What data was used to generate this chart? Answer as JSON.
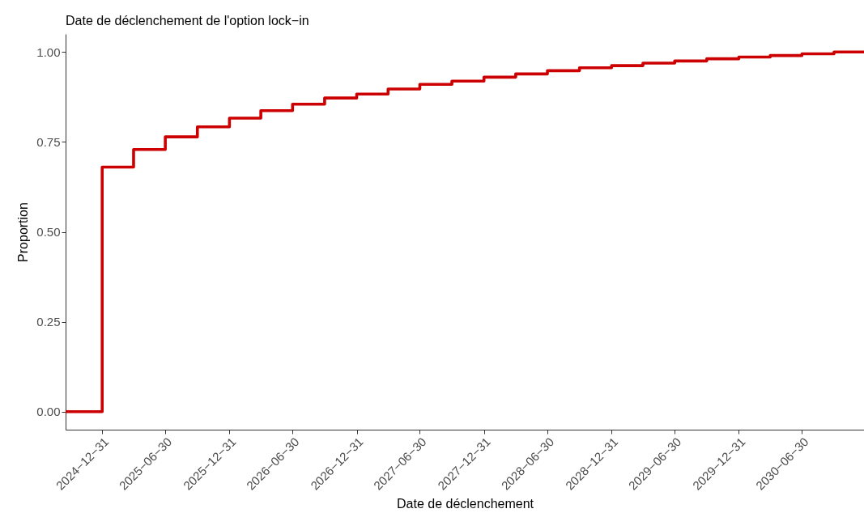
{
  "chart_data": {
    "type": "step",
    "title": "Date de déclenchement de l'option lock−in",
    "xlabel": "Date de déclenchement",
    "ylabel": "Proportion",
    "x": [
      "2024-09-17",
      "2024-12-31",
      "2025-03-31",
      "2025-06-30",
      "2025-09-30",
      "2025-12-31",
      "2026-03-31",
      "2026-06-30",
      "2026-09-30",
      "2026-12-31",
      "2027-03-31",
      "2027-06-30",
      "2027-09-30",
      "2027-12-31",
      "2028-03-31",
      "2028-06-30",
      "2028-09-30",
      "2028-12-31",
      "2029-03-31",
      "2029-06-30",
      "2029-09-30",
      "2029-12-31",
      "2030-03-31",
      "2030-06-30",
      "2030-09-30",
      "2030-12-25"
    ],
    "series": [
      {
        "color": "#cc0000",
        "values": [
          0,
          0.68,
          0.729,
          0.764,
          0.792,
          0.816,
          0.837,
          0.855,
          0.872,
          0.883,
          0.897,
          0.91,
          0.919,
          0.93,
          0.939,
          0.948,
          0.956,
          0.962,
          0.969,
          0.975,
          0.981,
          0.986,
          0.99,
          0.995,
          1.0,
          1.0
        ]
      }
    ],
    "xlim": [
      "2024-09-17",
      "2030-12-25"
    ],
    "xticks": [
      {
        "value": "2024-12-31",
        "label": "2024−12−31"
      },
      {
        "value": "2025-06-30",
        "label": "2025−06−30"
      },
      {
        "value": "2025-12-31",
        "label": "2025−12−31"
      },
      {
        "value": "2026-06-30",
        "label": "2026−06−30"
      },
      {
        "value": "2026-12-31",
        "label": "2026−12−31"
      },
      {
        "value": "2027-06-30",
        "label": "2027−06−30"
      },
      {
        "value": "2027-12-31",
        "label": "2027−12−31"
      },
      {
        "value": "2028-06-30",
        "label": "2028−06−30"
      },
      {
        "value": "2028-12-31",
        "label": "2028−12−31"
      },
      {
        "value": "2029-06-30",
        "label": "2029−06−30"
      },
      {
        "value": "2029-12-31",
        "label": "2029−12−31"
      },
      {
        "value": "2030-06-30",
        "label": "2030−06−30"
      }
    ],
    "ylim": [
      -0.05,
      1.05
    ],
    "yticks": [
      {
        "value": 0,
        "label": "0.00"
      },
      {
        "value": 0.25,
        "label": "0.25"
      },
      {
        "value": 0.5,
        "label": "0.50"
      },
      {
        "value": 0.75,
        "label": "0.75"
      },
      {
        "value": 1,
        "label": "1.00"
      }
    ],
    "grid": false,
    "legend": false
  }
}
